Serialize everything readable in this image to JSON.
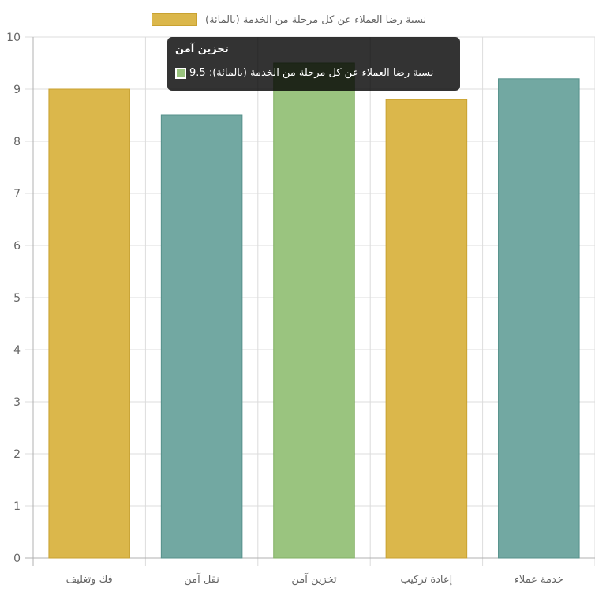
{
  "chart_data": {
    "type": "bar",
    "categories": [
      "فك وتغليف",
      "نقل آمن",
      "تخزين آمن",
      "إعادة تركيب",
      "خدمة عملاء"
    ],
    "series": [
      {
        "name": "نسبة رضا العملاء عن كل مرحلة من الخدمة (بالمائة)",
        "values": [
          9.0,
          8.5,
          9.5,
          8.8,
          9.2
        ]
      }
    ],
    "bar_colors": [
      "#dbb74b",
      "#72a8a2",
      "#9ac47f",
      "#dbb74b",
      "#72a8a2"
    ],
    "border_colors": [
      "#c9a231",
      "#55918b",
      "#82b064",
      "#c9a231",
      "#55918b"
    ],
    "ylim": [
      0,
      10
    ],
    "y_ticks": [
      "0",
      "1",
      "2",
      "3",
      "4",
      "5",
      "6",
      "7",
      "8",
      "9",
      "10"
    ],
    "grid": true,
    "legend": "top",
    "tooltip": {
      "title": "تخزين آمن",
      "label": "نسبة رضا العملاء عن كل مرحلة من الخدمة (بالمائة): 9.5",
      "color": "#9ac47f"
    }
  }
}
